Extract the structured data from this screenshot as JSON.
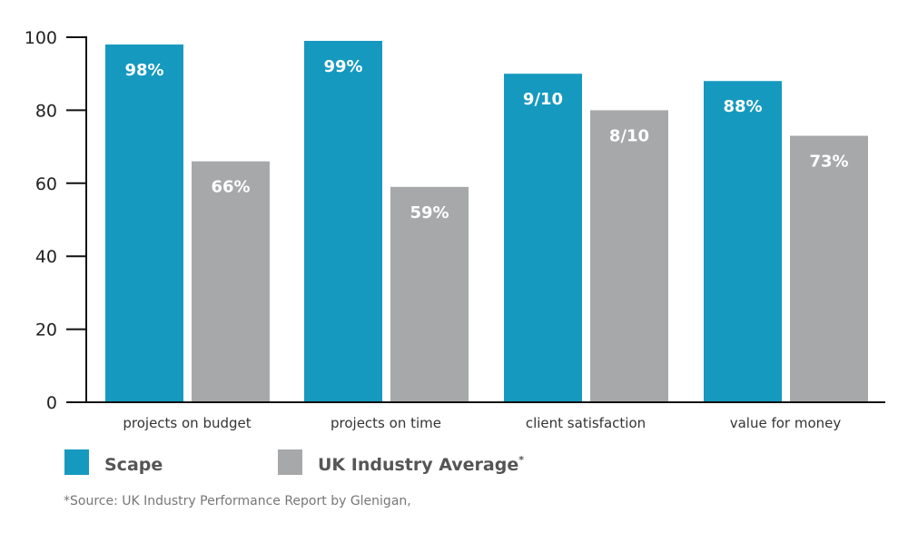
{
  "chart_data": {
    "type": "bar",
    "title": "",
    "xlabel": "",
    "ylabel": "",
    "ylim": [
      0,
      100
    ],
    "yticks": [
      "0",
      "20",
      "40",
      "60",
      "80",
      "100"
    ],
    "grid": false,
    "legend_position": "bottom-left",
    "categories": [
      "projects on budget",
      "projects on time",
      "client satisfaction",
      "value for money"
    ],
    "series": [
      {
        "name": "Scape",
        "color": "#1599bf",
        "values": [
          98,
          99,
          90,
          88
        ],
        "labels": [
          "98%",
          "99%",
          "9/10",
          "88%"
        ]
      },
      {
        "name": "UK Industry Average",
        "name_suffix": "*",
        "color": "#a7a8aa",
        "values": [
          66,
          59,
          80,
          73
        ],
        "labels": [
          "66%",
          "59%",
          "8/10",
          "73%"
        ]
      }
    ],
    "footnote": "*Source: UK Industry Performance Report by Glenigan,"
  }
}
